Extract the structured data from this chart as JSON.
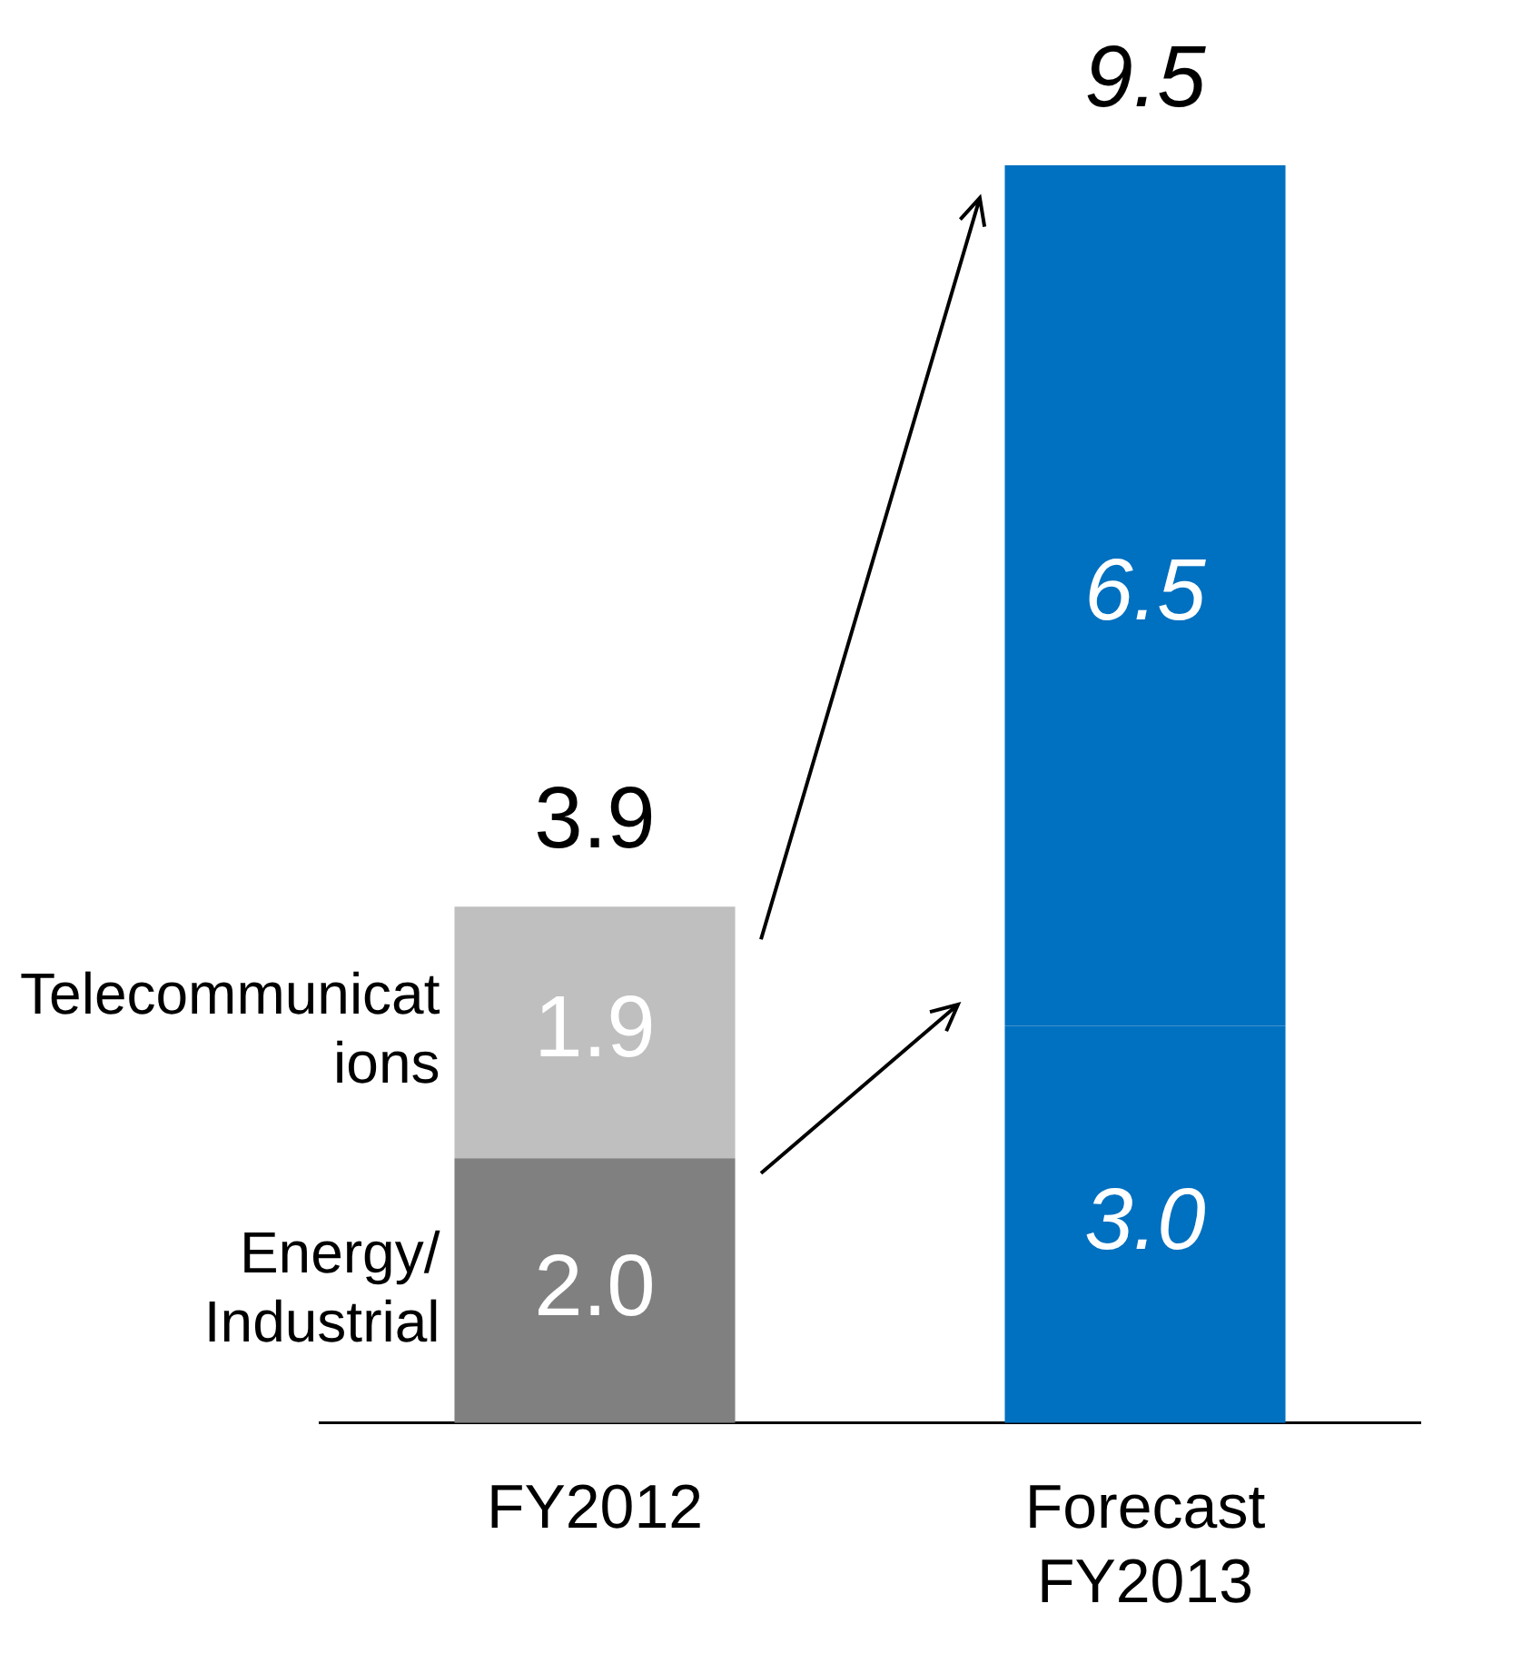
{
  "chart_data": {
    "type": "bar",
    "stacked": true,
    "categories": [
      "FY2012",
      "Forecast FY2013"
    ],
    "series": [
      {
        "name": "Energy/Industrial",
        "colors": [
          "#808080",
          "#0070c0"
        ],
        "values": [
          2.0,
          3.0
        ],
        "value_labels": [
          "2.0",
          "3.0"
        ]
      },
      {
        "name": "Telecommunications",
        "colors": [
          "#bfbfbf",
          "#0070c0"
        ],
        "values": [
          1.9,
          6.5
        ],
        "value_labels": [
          "1.9",
          "6.5"
        ]
      }
    ],
    "totals": [
      "3.9",
      "9.5"
    ]
  }
}
